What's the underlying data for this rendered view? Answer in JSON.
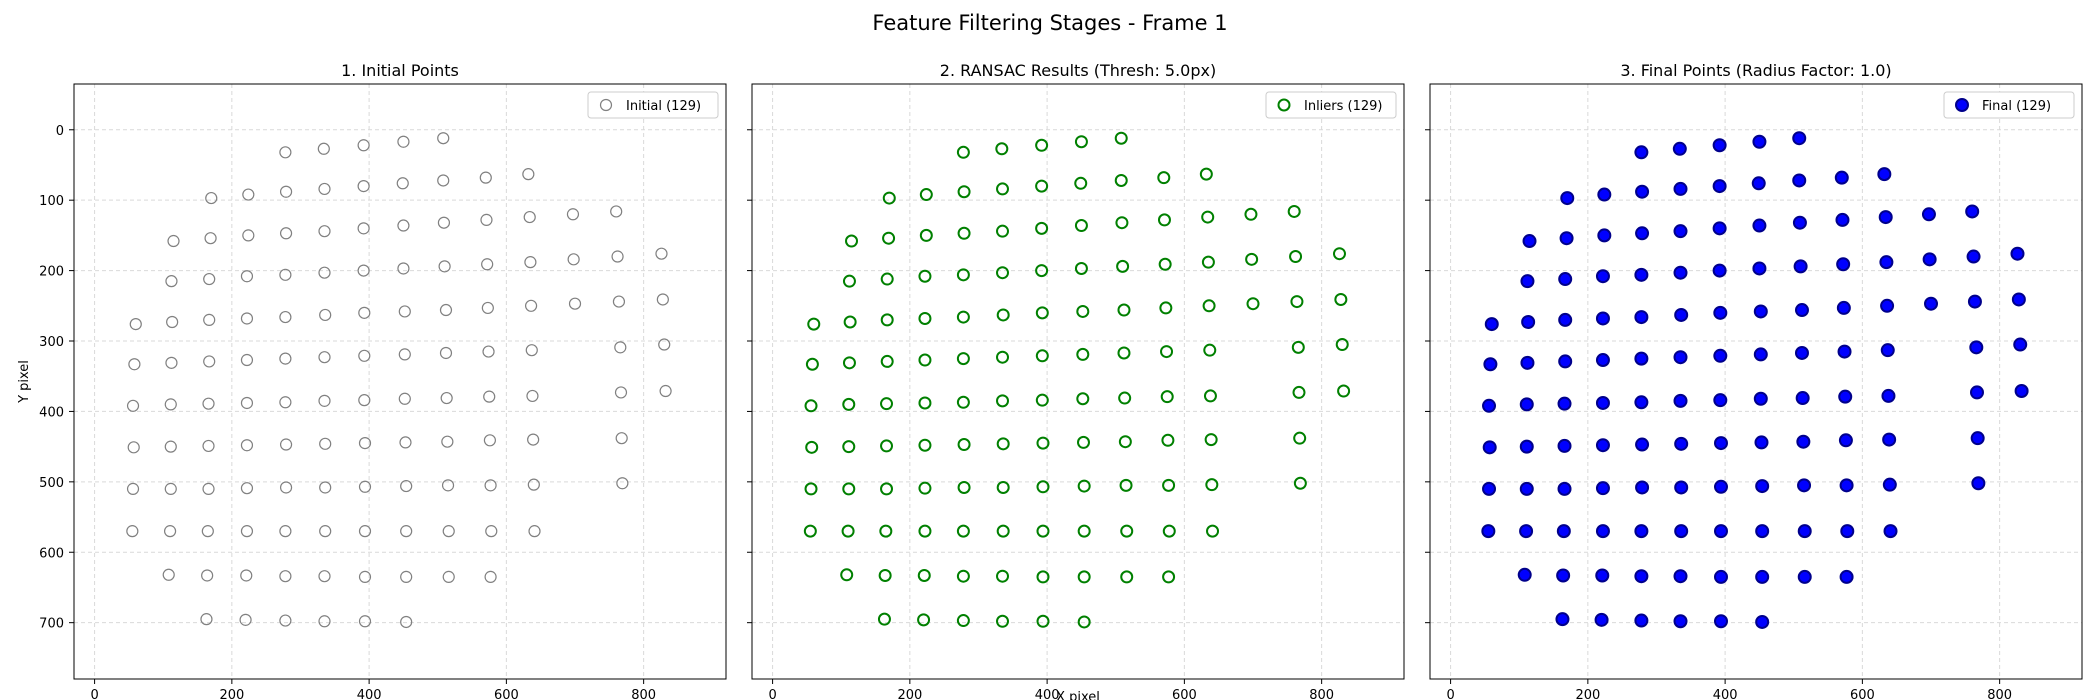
{
  "figure": {
    "title": "Feature Filtering Stages - Frame 1"
  },
  "panels": [
    {
      "title": "1. Initial Points",
      "legend": "Initial (129)",
      "ylabel": "Y pixel",
      "xlabel": "",
      "marker": {
        "fill": "none",
        "stroke": "#808080"
      }
    },
    {
      "title": "2. RANSAC Results (Thresh: 5.0px)",
      "legend": "Inliers (129)",
      "ylabel": "",
      "xlabel": "X pixel",
      "marker": {
        "fill": "none",
        "stroke": "#008000"
      }
    },
    {
      "title": "3. Final Points (Radius Factor: 1.0)",
      "legend": "Final (129)",
      "ylabel": "",
      "xlabel": "",
      "marker": {
        "fill": "#0000ff",
        "stroke": "#00008b"
      }
    }
  ],
  "chart_data": {
    "type": "scatter",
    "xlim": [
      -30,
      920
    ],
    "ylim": [
      780,
      -65
    ],
    "y_inverted": true,
    "grid": true,
    "legend_position": "top-right",
    "xticks": [
      0,
      200,
      400,
      600,
      800
    ],
    "yticks": [
      0,
      100,
      200,
      300,
      400,
      500,
      600,
      700
    ],
    "points": [
      [
        278,
        32
      ],
      [
        334,
        27
      ],
      [
        392,
        22
      ],
      [
        450,
        17
      ],
      [
        508,
        12
      ],
      [
        170,
        97
      ],
      [
        224,
        92
      ],
      [
        279,
        88
      ],
      [
        335,
        84
      ],
      [
        392,
        80
      ],
      [
        449,
        76
      ],
      [
        508,
        72
      ],
      [
        570,
        68
      ],
      [
        632,
        63
      ],
      [
        115,
        158
      ],
      [
        169,
        154
      ],
      [
        224,
        150
      ],
      [
        279,
        147
      ],
      [
        335,
        144
      ],
      [
        392,
        140
      ],
      [
        450,
        136
      ],
      [
        509,
        132
      ],
      [
        571,
        128
      ],
      [
        634,
        124
      ],
      [
        697,
        120
      ],
      [
        760,
        116
      ],
      [
        112,
        215
      ],
      [
        167,
        212
      ],
      [
        222,
        208
      ],
      [
        278,
        206
      ],
      [
        335,
        203
      ],
      [
        392,
        200
      ],
      [
        450,
        197
      ],
      [
        510,
        194
      ],
      [
        572,
        191
      ],
      [
        635,
        188
      ],
      [
        698,
        184
      ],
      [
        762,
        180
      ],
      [
        826,
        176
      ],
      [
        60,
        276
      ],
      [
        113,
        273
      ],
      [
        167,
        270
      ],
      [
        222,
        268
      ],
      [
        278,
        266
      ],
      [
        336,
        263
      ],
      [
        393,
        260
      ],
      [
        452,
        258
      ],
      [
        512,
        256
      ],
      [
        573,
        253
      ],
      [
        636,
        250
      ],
      [
        700,
        247
      ],
      [
        764,
        244
      ],
      [
        828,
        241
      ],
      [
        58,
        333
      ],
      [
        112,
        331
      ],
      [
        167,
        329
      ],
      [
        222,
        327
      ],
      [
        278,
        325
      ],
      [
        335,
        323
      ],
      [
        393,
        321
      ],
      [
        452,
        319
      ],
      [
        512,
        317
      ],
      [
        574,
        315
      ],
      [
        637,
        313
      ],
      [
        766,
        309
      ],
      [
        830,
        305
      ],
      [
        56,
        392
      ],
      [
        111,
        390
      ],
      [
        166,
        389
      ],
      [
        222,
        388
      ],
      [
        278,
        387
      ],
      [
        335,
        385
      ],
      [
        393,
        384
      ],
      [
        452,
        382
      ],
      [
        513,
        381
      ],
      [
        575,
        379
      ],
      [
        638,
        378
      ],
      [
        767,
        373
      ],
      [
        832,
        371
      ],
      [
        57,
        451
      ],
      [
        111,
        450
      ],
      [
        166,
        449
      ],
      [
        222,
        448
      ],
      [
        279,
        447
      ],
      [
        336,
        446
      ],
      [
        394,
        445
      ],
      [
        453,
        444
      ],
      [
        514,
        443
      ],
      [
        576,
        441
      ],
      [
        639,
        440
      ],
      [
        768,
        438
      ],
      [
        56,
        510
      ],
      [
        111,
        510
      ],
      [
        166,
        510
      ],
      [
        222,
        509
      ],
      [
        279,
        508
      ],
      [
        336,
        508
      ],
      [
        394,
        507
      ],
      [
        454,
        506
      ],
      [
        515,
        505
      ],
      [
        577,
        505
      ],
      [
        640,
        504
      ],
      [
        769,
        502
      ],
      [
        55,
        570
      ],
      [
        110,
        570
      ],
      [
        165,
        570
      ],
      [
        222,
        570
      ],
      [
        278,
        570
      ],
      [
        336,
        570
      ],
      [
        394,
        570
      ],
      [
        454,
        570
      ],
      [
        516,
        570
      ],
      [
        578,
        570
      ],
      [
        641,
        570
      ],
      [
        108,
        632
      ],
      [
        164,
        633
      ],
      [
        221,
        633
      ],
      [
        278,
        634
      ],
      [
        335,
        634
      ],
      [
        394,
        635
      ],
      [
        454,
        635
      ],
      [
        516,
        635
      ],
      [
        577,
        635
      ],
      [
        163,
        695
      ],
      [
        220,
        696
      ],
      [
        278,
        697
      ],
      [
        335,
        698
      ],
      [
        394,
        698
      ],
      [
        454,
        699
      ]
    ]
  }
}
